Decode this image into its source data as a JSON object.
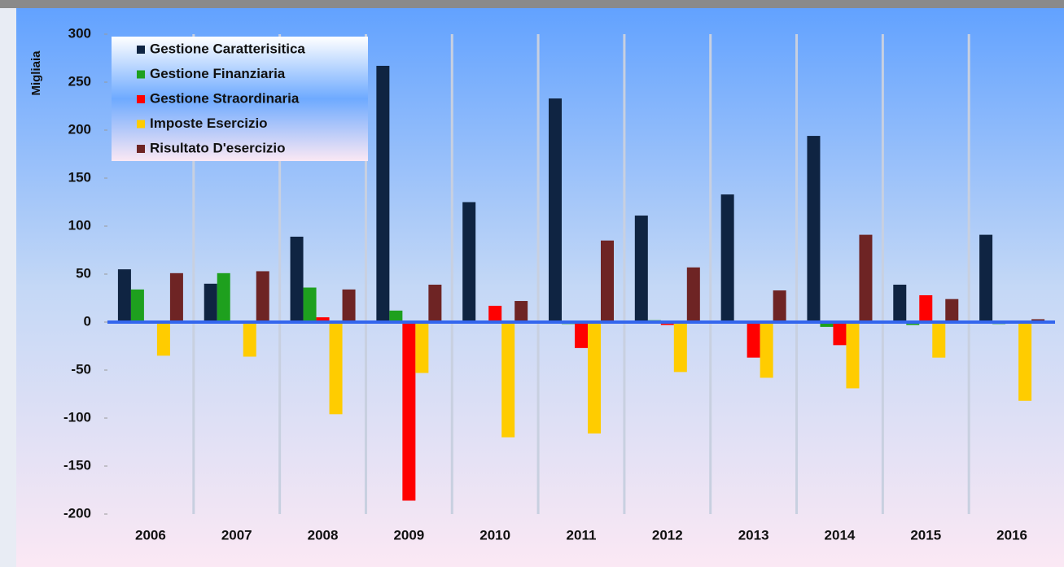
{
  "chart_data": {
    "type": "bar",
    "y_label": "Migliaia",
    "categories": [
      "2006",
      "2007",
      "2008",
      "2009",
      "2010",
      "2011",
      "2012",
      "2013",
      "2014",
      "2015",
      "2016"
    ],
    "series": [
      {
        "name": "Gestione Caratterisitica",
        "color": "#0f2442",
        "values": [
          55,
          40,
          89,
          267,
          125,
          233,
          111,
          133,
          194,
          39,
          91
        ]
      },
      {
        "name": "Gestione Finanziaria",
        "color": "#1ea01e",
        "values": [
          34,
          51,
          36,
          12,
          0,
          -2,
          2,
          0,
          -5,
          -3,
          -2
        ]
      },
      {
        "name": "Gestione Straordinaria",
        "color": "#ff0000",
        "values": [
          0,
          0,
          5,
          -186,
          17,
          -27,
          -3,
          -37,
          -24,
          28,
          0
        ]
      },
      {
        "name": "Imposte Esercizio",
        "color": "#ffcc00",
        "values": [
          -35,
          -36,
          -96,
          -53,
          -120,
          -116,
          -52,
          -58,
          -69,
          -37,
          -82
        ]
      },
      {
        "name": "Risultato D'esercizio",
        "color": "#6e2424",
        "values": [
          51,
          53,
          34,
          39,
          22,
          85,
          57,
          33,
          91,
          24,
          3
        ]
      }
    ],
    "ylim": [
      -200,
      300
    ],
    "yticks": [
      300,
      250,
      200,
      150,
      100,
      50,
      0,
      -50,
      -100,
      -150,
      -200
    ]
  }
}
